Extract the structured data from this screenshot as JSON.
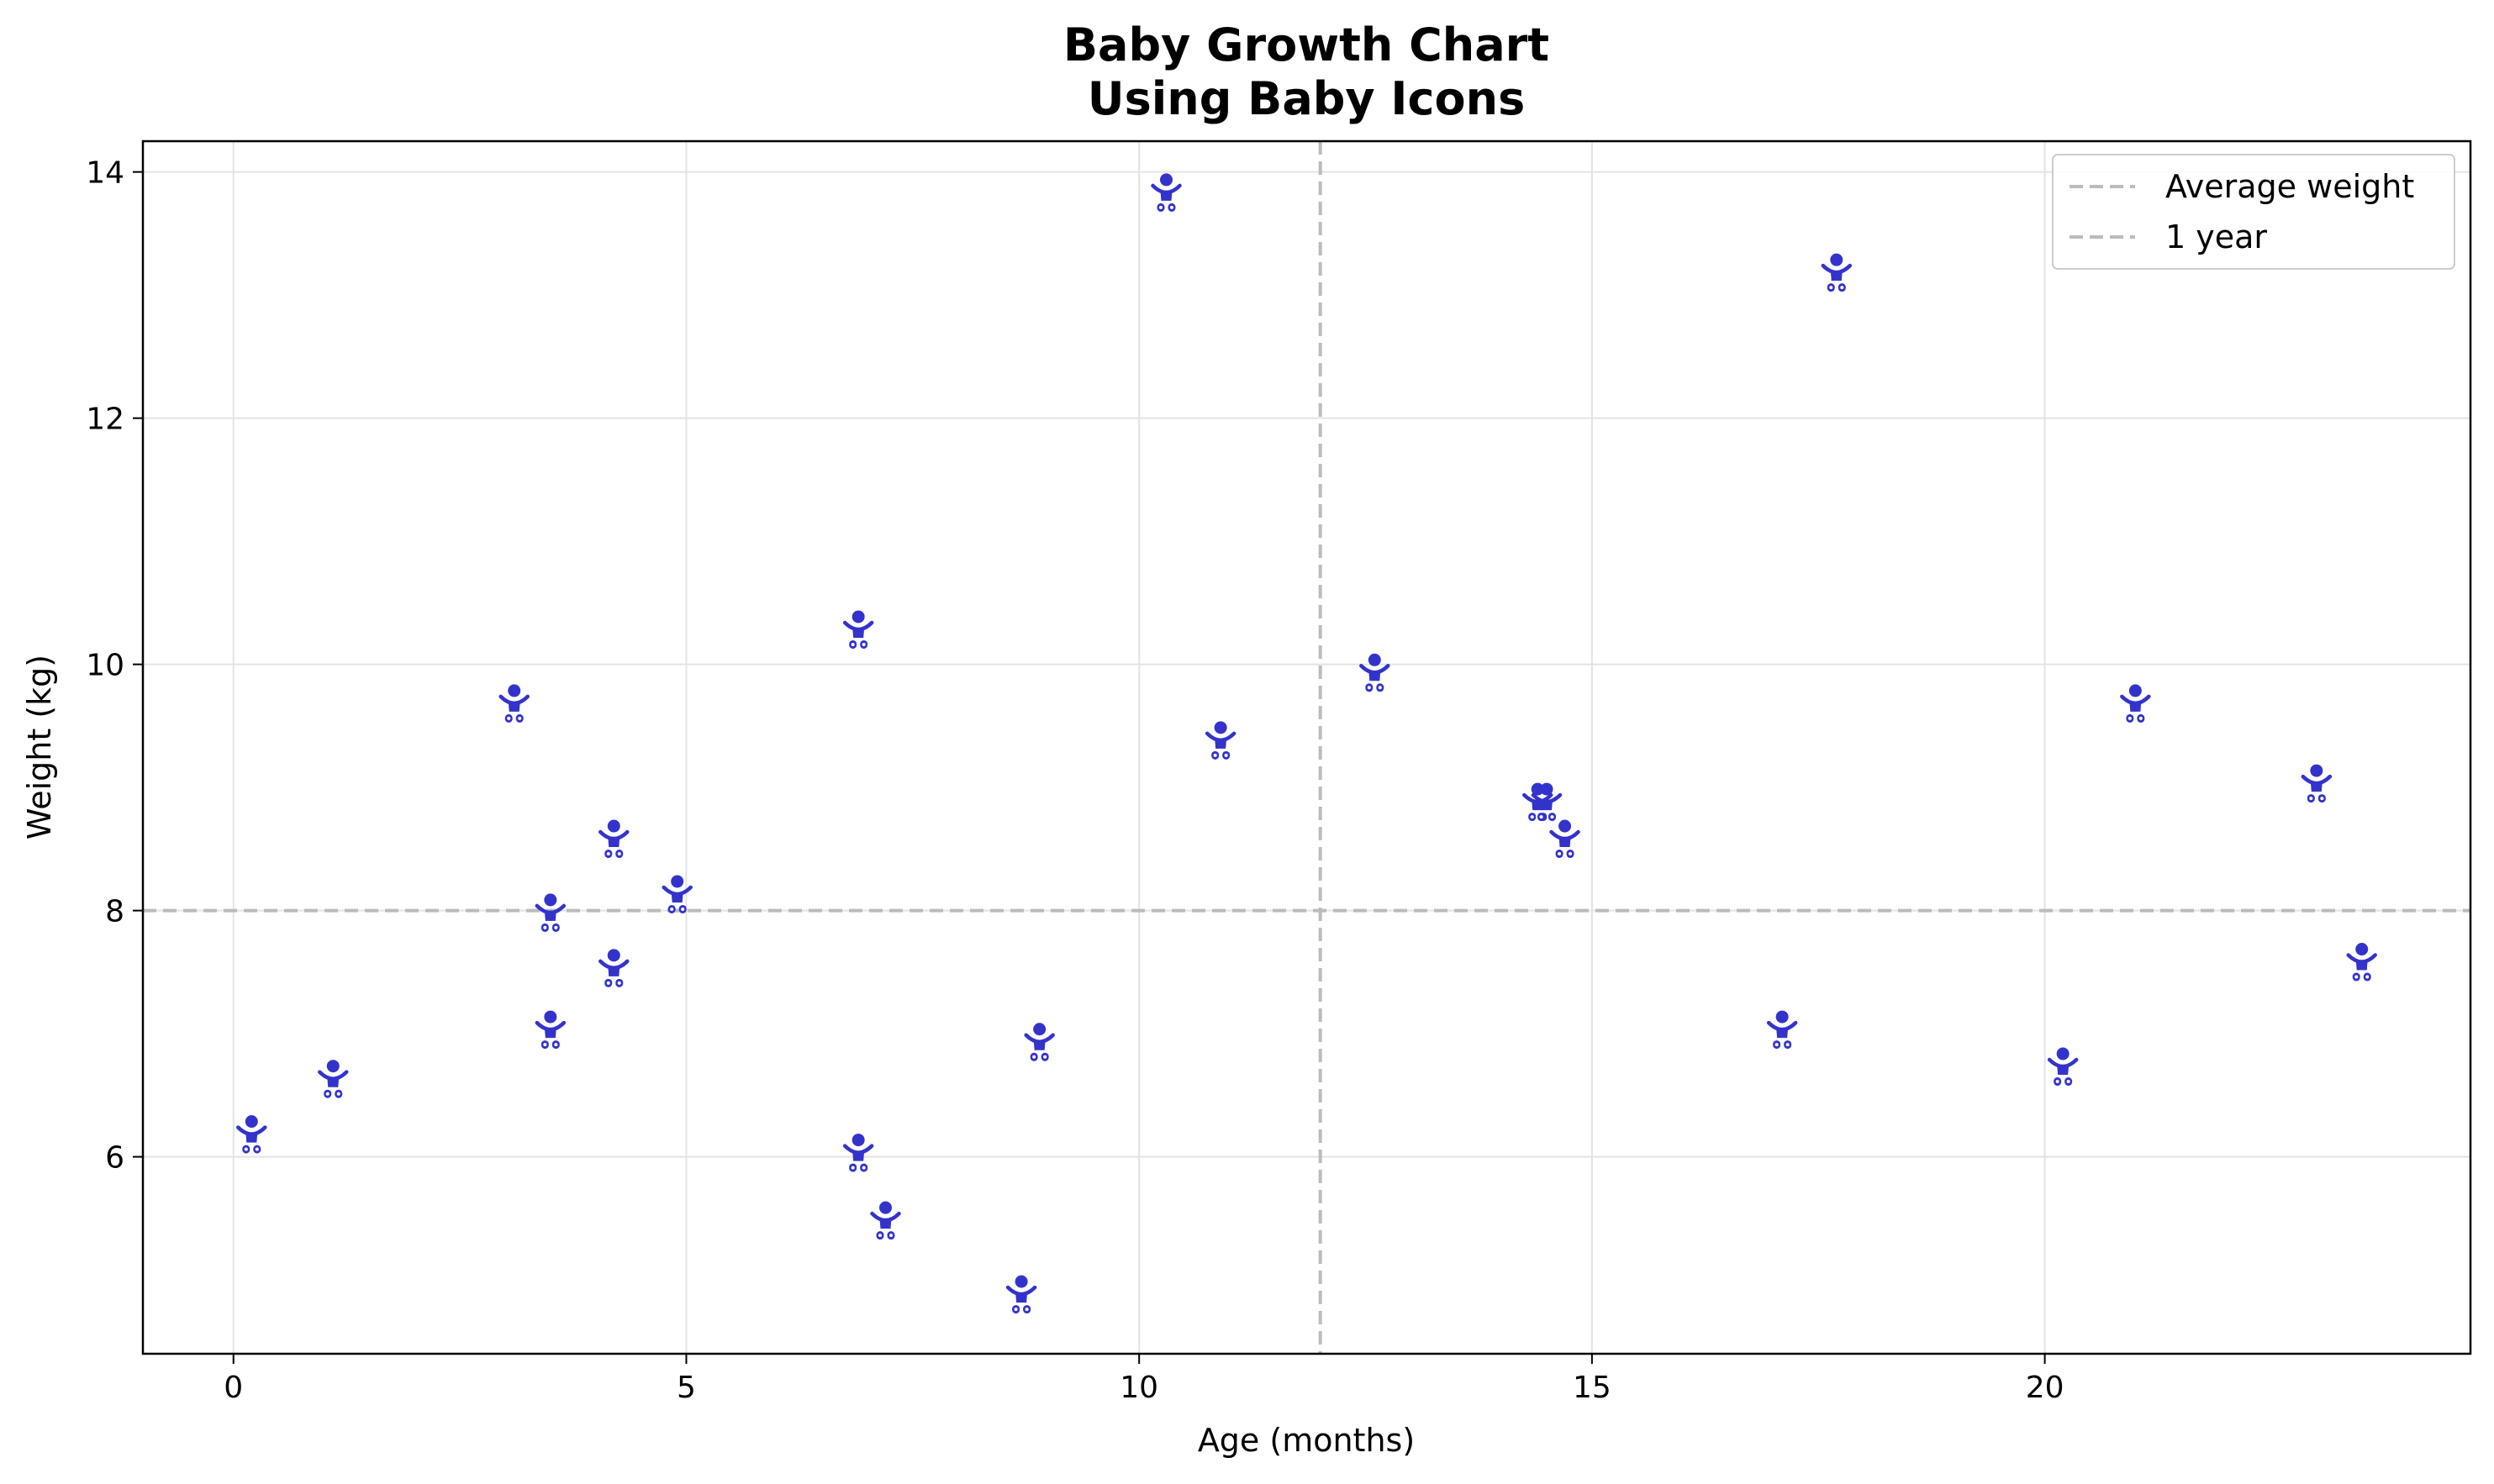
{
  "chart_data": {
    "type": "scatter",
    "title_line1": "Baby Growth Chart",
    "title_line2": "Using Baby Icons",
    "xlabel": "Age (months)",
    "ylabel": "Weight (kg)",
    "xlim": [
      -1,
      24.7
    ],
    "ylim": [
      4.4,
      14.25
    ],
    "xticks": [
      0,
      5,
      10,
      15,
      20
    ],
    "yticks": [
      6,
      8,
      10,
      12,
      14
    ],
    "grid": true,
    "marker_color": "#3333cc",
    "reference_color": "#bbbbbb",
    "average_weight": 8,
    "one_year_age": 12,
    "legend": {
      "position": "top-right",
      "entries": [
        "Average weight",
        "1 year"
      ]
    },
    "series": [
      {
        "name": "babies",
        "x": [
          0.2,
          1.1,
          3.1,
          3.5,
          3.5,
          4.2,
          4.2,
          4.9,
          6.9,
          6.9,
          7.2,
          8.7,
          8.9,
          10.3,
          10.9,
          12.6,
          14.4,
          14.5,
          14.7,
          17.1,
          17.7,
          20.2,
          21.0,
          23.0,
          23.5
        ],
        "y": [
          6.15,
          6.6,
          9.65,
          7.95,
          7.0,
          8.55,
          7.5,
          8.1,
          10.25,
          6.0,
          5.45,
          4.85,
          6.9,
          13.8,
          9.35,
          9.9,
          8.85,
          8.85,
          8.55,
          7.0,
          13.15,
          6.7,
          9.65,
          9.0,
          7.55
        ]
      }
    ]
  }
}
